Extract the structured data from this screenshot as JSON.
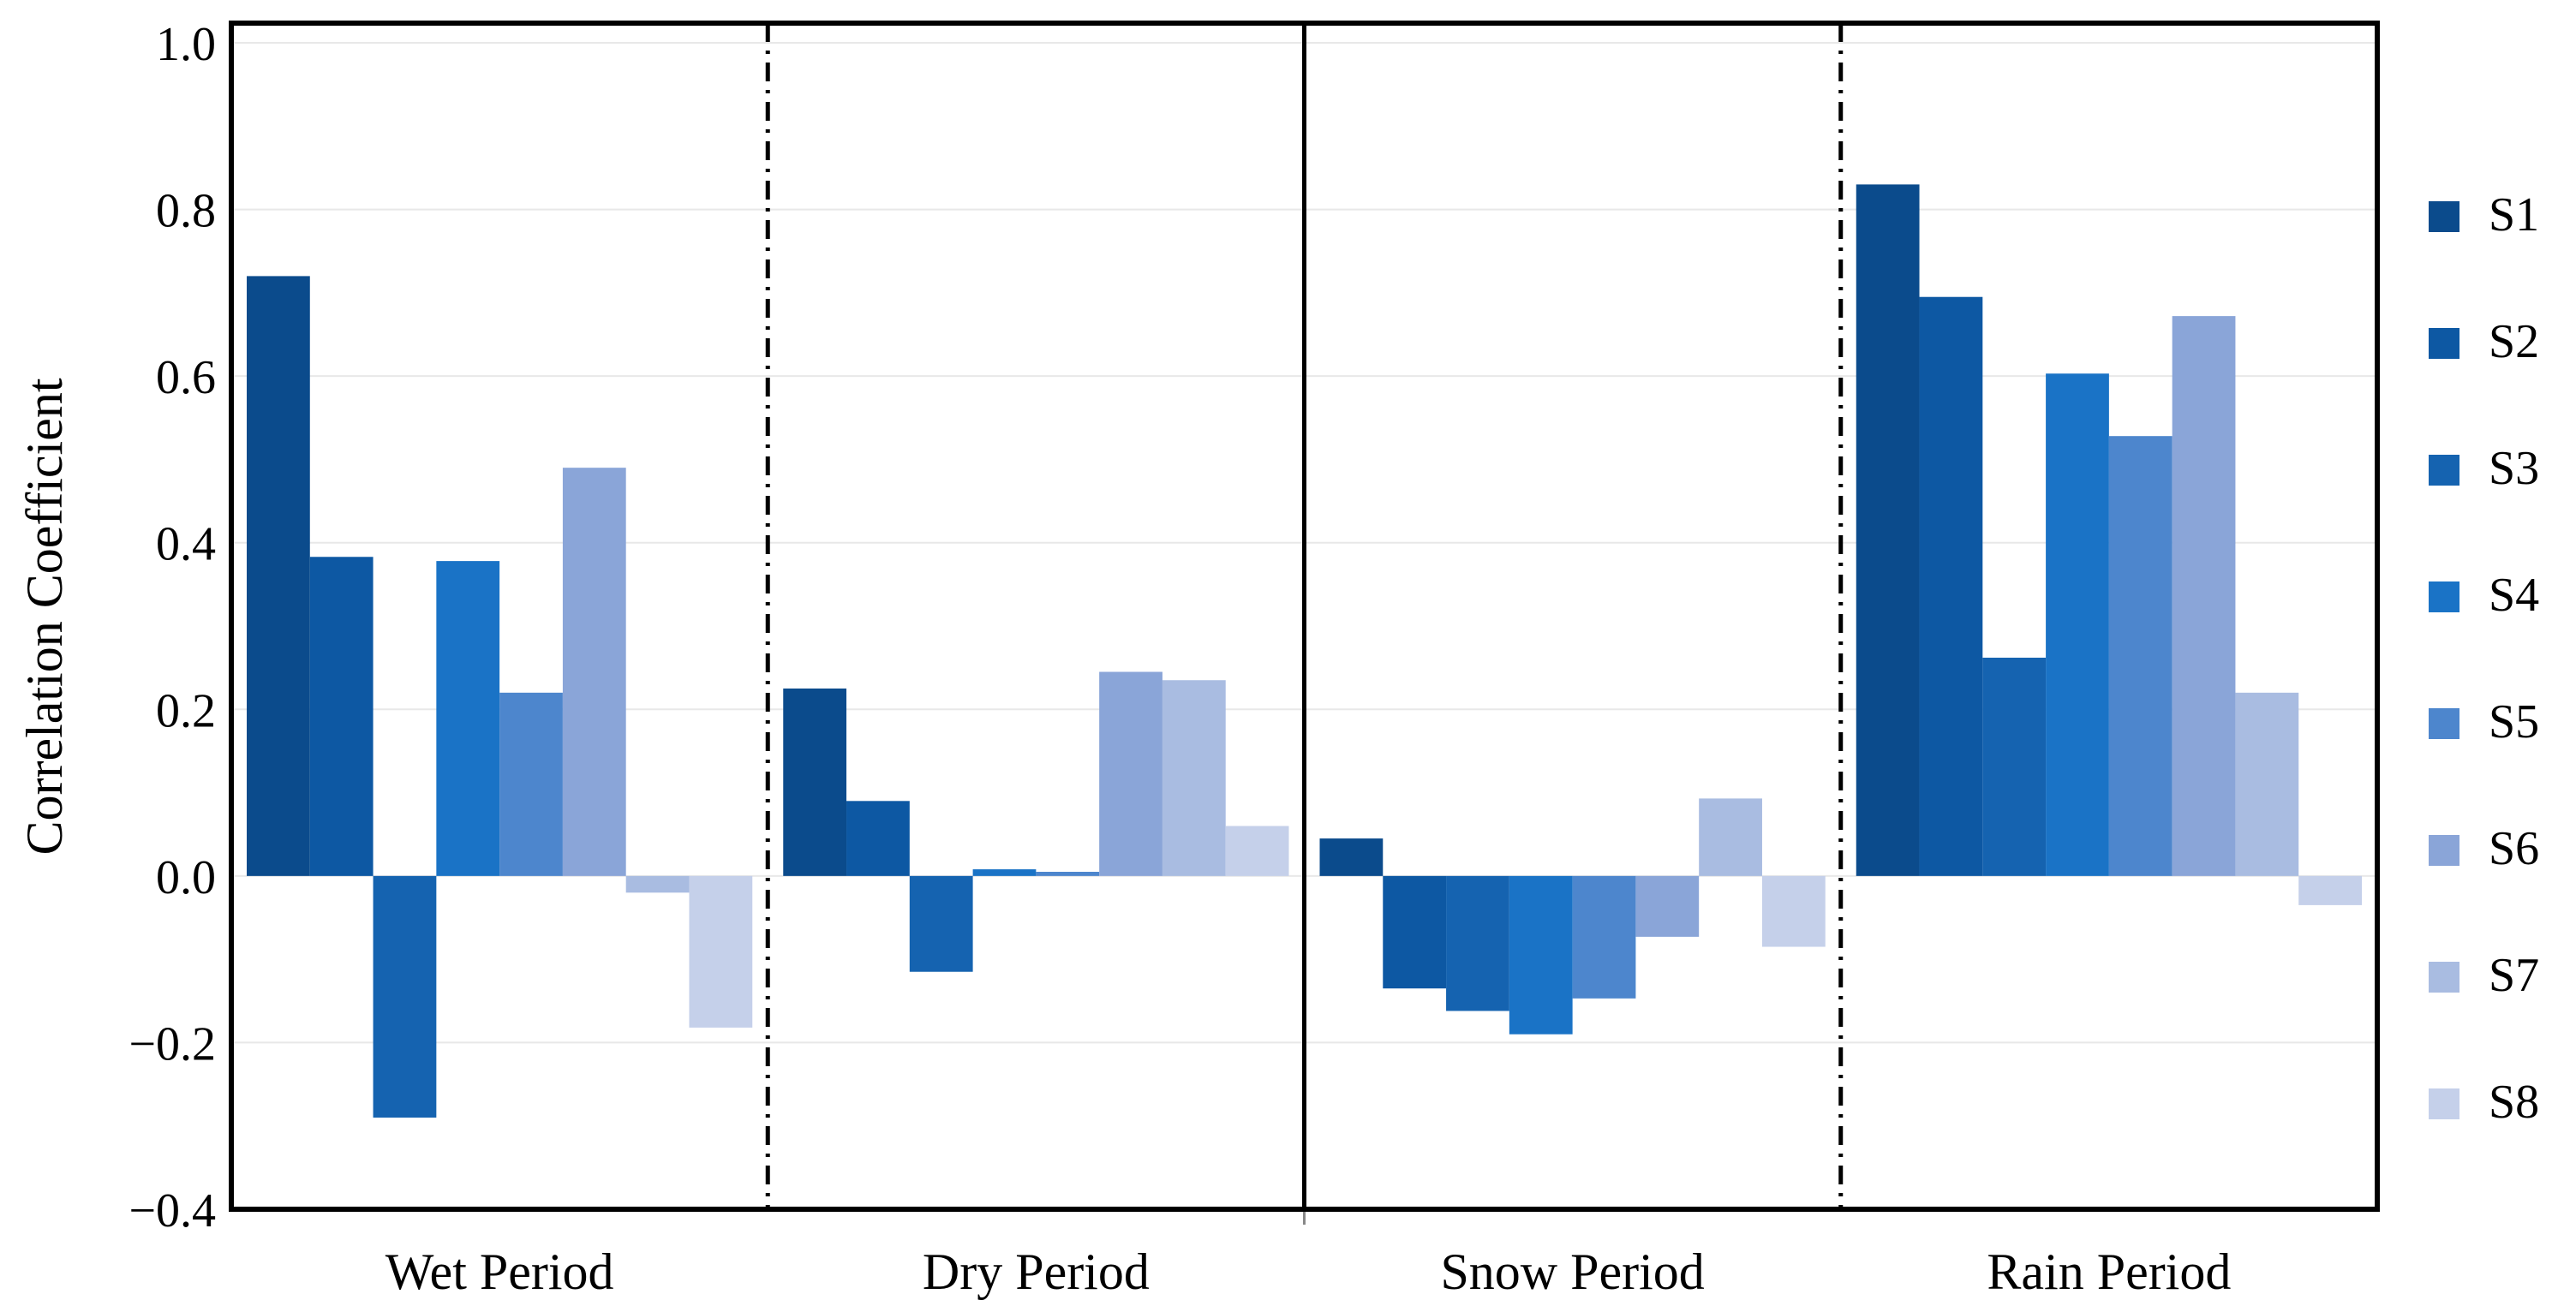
{
  "chart_data": {
    "type": "bar",
    "title": "",
    "xlabel": "",
    "ylabel": "Correlation Coefficient",
    "ylim": [
      -0.4,
      1.0
    ],
    "yticks": [
      {
        "value": -0.4,
        "label": "−0.4"
      },
      {
        "value": -0.2,
        "label": "−0.2"
      },
      {
        "value": 0.0,
        "label": "0.0"
      },
      {
        "value": 0.2,
        "label": "0.2"
      },
      {
        "value": 0.4,
        "label": "0.4"
      },
      {
        "value": 0.6,
        "label": "0.6"
      },
      {
        "value": 0.8,
        "label": "0.8"
      },
      {
        "value": 1.0,
        "label": "1.0"
      }
    ],
    "categories": [
      "Wet Period",
      "Dry Period",
      "Snow Period",
      "Rain Period"
    ],
    "legend_position": "right",
    "series": [
      {
        "name": "S1",
        "color": "#0b4b8c",
        "values": [
          0.72,
          0.225,
          0.045,
          0.83
        ]
      },
      {
        "name": "S2",
        "color": "#0d58a3",
        "values": [
          0.383,
          0.09,
          -0.135,
          0.695
        ]
      },
      {
        "name": "S3",
        "color": "#1563b0",
        "values": [
          -0.29,
          -0.115,
          -0.162,
          0.262
        ]
      },
      {
        "name": "S4",
        "color": "#1a73c6",
        "values": [
          0.378,
          0.008,
          -0.19,
          0.603
        ]
      },
      {
        "name": "S5",
        "color": "#4d86cd",
        "values": [
          0.22,
          0.005,
          -0.147,
          0.528
        ]
      },
      {
        "name": "S6",
        "color": "#8aa5d8",
        "values": [
          0.49,
          0.245,
          -0.073,
          0.672
        ]
      },
      {
        "name": "S7",
        "color": "#a9bce1",
        "values": [
          -0.02,
          0.235,
          0.093,
          0.22
        ]
      },
      {
        "name": "S8",
        "color": "#c5d0ea",
        "values": [
          -0.182,
          0.06,
          -0.085,
          -0.035
        ]
      }
    ],
    "dividers": [
      "dash-dot",
      "solid",
      "dash-dot"
    ]
  }
}
